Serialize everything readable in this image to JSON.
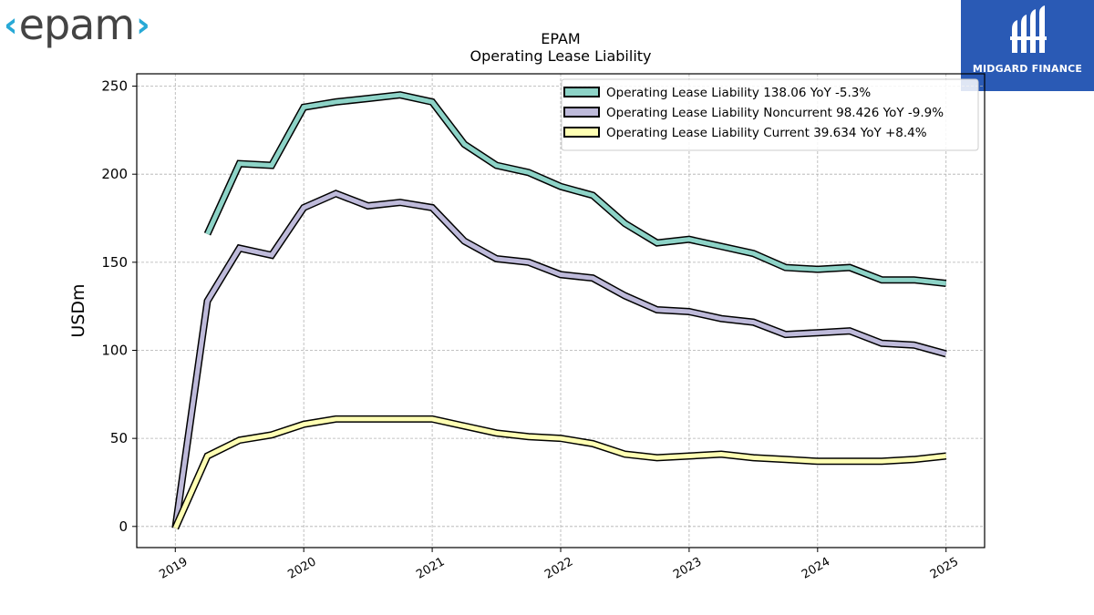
{
  "logos": {
    "left_text": "epam",
    "right_text": "MIDGARD FINANCE",
    "right_bg": "#2a5ab5"
  },
  "chart_data": {
    "type": "line",
    "title": "EPAM",
    "subtitle": "Operating Lease Liability",
    "ylabel": "USDm",
    "xlabel": "",
    "xlim": [
      2018.7,
      2025.3
    ],
    "ylim": [
      -12,
      257
    ],
    "xticks": [
      2019,
      2020,
      2021,
      2022,
      2023,
      2024,
      2025
    ],
    "xtick_labels": [
      "2019",
      "2020",
      "2021",
      "2022",
      "2023",
      "2024",
      "2025"
    ],
    "yticks": [
      0,
      50,
      100,
      150,
      200,
      250
    ],
    "ytick_labels": [
      "0",
      "50",
      "100",
      "150",
      "200",
      "250"
    ],
    "grid": true,
    "legend_position": "upper-right",
    "series": [
      {
        "name": "Operating Lease Liability  138.06 YoY -5.3%",
        "color": "#8dd3c7",
        "x": [
          2019.25,
          2019.5,
          2019.75,
          2020.0,
          2020.25,
          2020.5,
          2020.75,
          2021.0,
          2021.25,
          2021.5,
          2021.75,
          2022.0,
          2022.25,
          2022.5,
          2022.75,
          2023.0,
          2023.25,
          2023.5,
          2023.75,
          2024.0,
          2024.25,
          2024.5,
          2024.75,
          2025.0
        ],
        "y": [
          166,
          206,
          205,
          238,
          241,
          243,
          245,
          241,
          217,
          205,
          201,
          193,
          188,
          172,
          161,
          163,
          159,
          155,
          147,
          146,
          147,
          140,
          140,
          138
        ]
      },
      {
        "name": "Operating Lease Liability Noncurrent  98.426 YoY -9.9%",
        "color": "#bebada",
        "x": [
          2019.0,
          2019.25,
          2019.5,
          2019.75,
          2020.0,
          2020.25,
          2020.5,
          2020.75,
          2021.0,
          2021.25,
          2021.5,
          2021.75,
          2022.0,
          2022.25,
          2022.5,
          2022.75,
          2023.0,
          2023.25,
          2023.5,
          2023.75,
          2024.0,
          2024.25,
          2024.5,
          2024.75,
          2025.0
        ],
        "y": [
          -1,
          128,
          158,
          154,
          181,
          189,
          182,
          184,
          181,
          162,
          152,
          150,
          143,
          141,
          131,
          123,
          122,
          118,
          116,
          109,
          110,
          111,
          104,
          103,
          98
        ]
      },
      {
        "name": "Operating Lease Liability Current  39.634 YoY +8.4%",
        "color": "#ffffb3",
        "x": [
          2019.0,
          2019.25,
          2019.5,
          2019.75,
          2020.0,
          2020.25,
          2020.5,
          2020.75,
          2021.0,
          2021.25,
          2021.5,
          2021.75,
          2022.0,
          2022.25,
          2022.5,
          2022.75,
          2023.0,
          2023.25,
          2023.5,
          2023.75,
          2024.0,
          2024.25,
          2024.5,
          2024.75,
          2025.0
        ],
        "y": [
          -1,
          40,
          49,
          52,
          58,
          61,
          61,
          61,
          61,
          57,
          53,
          51,
          50,
          47,
          41,
          39,
          40,
          41,
          39,
          38,
          37,
          37,
          37,
          38,
          40
        ]
      }
    ]
  }
}
